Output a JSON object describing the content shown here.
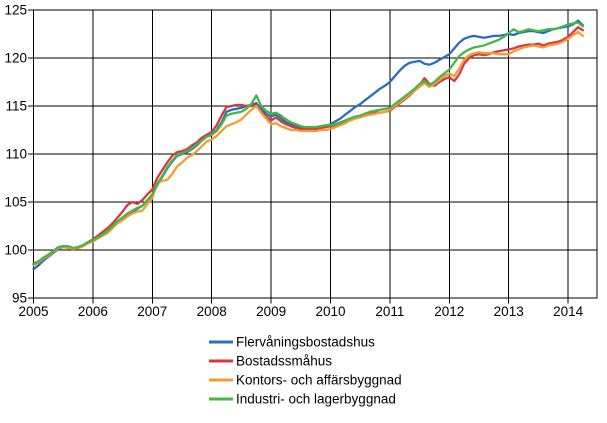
{
  "chart_data": {
    "type": "line",
    "title": "",
    "x_axis": {
      "tick_labels": [
        "2005",
        "2006",
        "2007",
        "2008",
        "2009",
        "2010",
        "2011",
        "2012",
        "2013",
        "2014"
      ],
      "start_year": 2005,
      "points_per_year": 12,
      "xlim_years": [
        2005,
        2014.5
      ]
    },
    "y_axis": {
      "tick_labels": [
        "95",
        "100",
        "105",
        "110",
        "115",
        "120",
        "125"
      ],
      "tick_values": [
        95,
        100,
        105,
        110,
        115,
        120,
        125
      ],
      "gridline_values": [
        100,
        105,
        110,
        115,
        120
      ],
      "ylim": [
        95,
        125
      ]
    },
    "grid": true,
    "legend_position": "bottom-center",
    "series": [
      {
        "name": "Flervåningsbostadshus",
        "color": "#2a6ebb",
        "values": [
          98.0,
          98.4,
          98.9,
          99.3,
          99.7,
          100.1,
          100.3,
          100.3,
          100.2,
          100.3,
          100.5,
          100.8,
          101.0,
          101.3,
          101.6,
          101.9,
          102.4,
          102.9,
          103.3,
          103.7,
          104.0,
          104.3,
          104.6,
          105.2,
          105.7,
          106.8,
          107.6,
          108.5,
          109.2,
          109.8,
          110.0,
          110.2,
          110.5,
          110.9,
          111.4,
          111.8,
          112.0,
          112.5,
          113.3,
          114.4,
          114.6,
          114.7,
          114.8,
          115.0,
          115.1,
          115.3,
          114.7,
          114.2,
          113.9,
          114.1,
          113.7,
          113.3,
          113.1,
          112.9,
          112.8,
          112.7,
          112.7,
          112.7,
          112.8,
          112.9,
          113.1,
          113.4,
          113.7,
          114.1,
          114.5,
          114.9,
          115.2,
          115.6,
          116.0,
          116.4,
          116.8,
          117.1,
          117.5,
          118.1,
          118.7,
          119.2,
          119.5,
          119.6,
          119.7,
          119.4,
          119.3,
          119.5,
          119.8,
          120.1,
          120.4,
          121.0,
          121.6,
          122.0,
          122.2,
          122.3,
          122.2,
          122.1,
          122.2,
          122.3,
          122.3,
          122.4,
          122.5,
          122.4,
          122.6,
          122.7,
          122.8,
          122.8,
          122.7,
          122.6,
          122.8,
          123.0,
          123.1,
          123.2,
          123.3,
          123.5,
          123.9,
          123.4
        ]
      },
      {
        "name": "Bostadssmåhus",
        "color": "#d5393b",
        "values": [
          98.6,
          98.8,
          99.2,
          99.5,
          99.9,
          100.3,
          100.4,
          100.3,
          100.1,
          100.2,
          100.4,
          100.8,
          101.1,
          101.5,
          101.9,
          102.3,
          102.8,
          103.4,
          104.0,
          104.7,
          105.0,
          104.8,
          105.2,
          105.8,
          106.3,
          107.5,
          108.3,
          109.1,
          109.8,
          110.2,
          110.3,
          110.5,
          110.9,
          111.2,
          111.7,
          112.0,
          112.3,
          113.0,
          114.0,
          114.9,
          115.0,
          115.1,
          115.1,
          115.0,
          115.0,
          115.1,
          114.4,
          113.9,
          113.5,
          113.8,
          113.4,
          113.1,
          112.9,
          112.7,
          112.6,
          112.6,
          112.6,
          112.6,
          112.7,
          112.8,
          112.9,
          113.0,
          113.1,
          113.3,
          113.6,
          113.8,
          113.9,
          114.0,
          114.2,
          114.3,
          114.3,
          114.4,
          114.5,
          114.9,
          115.3,
          115.7,
          116.1,
          116.6,
          117.2,
          117.9,
          117.3,
          117.1,
          117.5,
          117.8,
          118.0,
          117.6,
          118.3,
          119.4,
          120.0,
          120.3,
          120.4,
          120.3,
          120.4,
          120.6,
          120.7,
          120.8,
          120.9,
          121.0,
          121.2,
          121.3,
          121.4,
          121.4,
          121.5,
          121.3,
          121.5,
          121.6,
          121.7,
          121.9,
          122.2,
          122.7,
          123.2,
          122.9
        ]
      },
      {
        "name": "Kontors- och affärsbyggnad",
        "color": "#f59b33",
        "values": [
          98.4,
          98.7,
          99.1,
          99.4,
          99.8,
          100.2,
          100.3,
          100.2,
          100.1,
          100.2,
          100.4,
          100.7,
          100.9,
          101.2,
          101.5,
          101.8,
          102.3,
          102.8,
          103.1,
          103.5,
          103.8,
          104.0,
          104.1,
          104.8,
          105.4,
          107.0,
          107.2,
          107.3,
          107.9,
          108.7,
          109.1,
          109.6,
          109.9,
          110.3,
          110.8,
          111.3,
          111.5,
          111.9,
          112.4,
          112.9,
          113.1,
          113.3,
          113.6,
          114.1,
          114.6,
          115.0,
          114.3,
          113.7,
          113.1,
          113.2,
          112.9,
          112.7,
          112.5,
          112.5,
          112.4,
          112.4,
          112.4,
          112.4,
          112.5,
          112.5,
          112.6,
          112.8,
          113.0,
          113.2,
          113.5,
          113.7,
          113.8,
          114.0,
          114.1,
          114.2,
          114.3,
          114.4,
          114.6,
          115.0,
          115.4,
          115.8,
          116.2,
          116.6,
          117.0,
          117.4,
          117.0,
          117.3,
          117.7,
          118.1,
          118.4,
          118.1,
          118.9,
          119.8,
          120.3,
          120.5,
          120.6,
          120.5,
          120.5,
          120.5,
          120.4,
          120.4,
          120.4,
          120.7,
          120.9,
          121.1,
          121.2,
          121.3,
          121.2,
          121.1,
          121.3,
          121.4,
          121.5,
          121.7,
          122.0,
          122.4,
          122.7,
          122.3
        ]
      },
      {
        "name": "Industri- och lagerbyggnad",
        "color": "#45b648",
        "values": [
          98.5,
          98.8,
          99.2,
          99.5,
          99.9,
          100.3,
          100.4,
          100.4,
          100.2,
          100.3,
          100.5,
          100.8,
          101.0,
          101.3,
          101.6,
          102.0,
          102.5,
          103.0,
          103.4,
          103.8,
          104.1,
          104.4,
          104.6,
          105.2,
          105.8,
          106.9,
          107.7,
          108.6,
          109.3,
          109.9,
          110.1,
          110.3,
          110.6,
          111.0,
          111.4,
          111.8,
          112.0,
          112.4,
          113.1,
          114.0,
          114.2,
          114.3,
          114.4,
          114.7,
          115.2,
          116.1,
          115.0,
          114.5,
          114.2,
          114.3,
          114.0,
          113.6,
          113.3,
          113.1,
          112.9,
          112.8,
          112.8,
          112.8,
          112.9,
          113.0,
          113.0,
          113.1,
          113.3,
          113.5,
          113.7,
          113.9,
          114.0,
          114.2,
          114.4,
          114.5,
          114.6,
          114.7,
          114.8,
          115.2,
          115.6,
          116.0,
          116.4,
          116.8,
          117.3,
          117.6,
          117.2,
          117.5,
          118.0,
          118.4,
          118.8,
          119.5,
          120.2,
          120.6,
          120.9,
          121.1,
          121.2,
          121.3,
          121.5,
          121.7,
          121.9,
          122.2,
          122.6,
          123.0,
          122.7,
          122.8,
          123.0,
          122.9,
          122.8,
          122.9,
          123.0,
          123.0,
          123.1,
          123.3,
          123.5,
          123.6,
          123.7,
          123.3
        ]
      }
    ]
  },
  "colors": {
    "grid": "#000000",
    "axis": "#000000",
    "text": "#000000",
    "background": "#ffffff"
  }
}
